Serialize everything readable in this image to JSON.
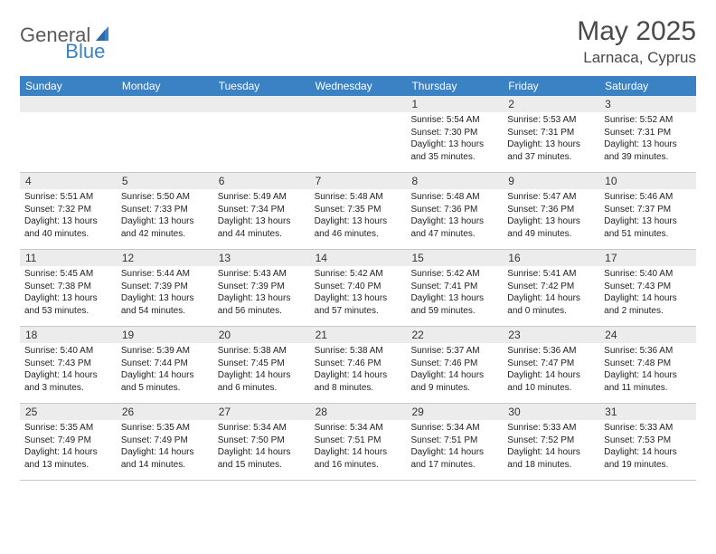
{
  "logo": {
    "text1": "General",
    "text2": "Blue"
  },
  "title": {
    "month": "May 2025",
    "location": "Larnaca, Cyprus"
  },
  "dayheaders": [
    "Sunday",
    "Monday",
    "Tuesday",
    "Wednesday",
    "Thursday",
    "Friday",
    "Saturday"
  ],
  "colors": {
    "header_bg": "#3b82c4",
    "header_fg": "#ffffff",
    "daynum_bg": "#ececec",
    "text": "#222222",
    "logo_gray": "#5a5a5a",
    "logo_blue": "#3b82c4"
  },
  "fonts": {
    "title_pt": 30,
    "location_pt": 17,
    "header_pt": 12,
    "daynum_pt": 12,
    "body_pt": 10
  },
  "weeks": [
    [
      {
        "n": "",
        "l1": "",
        "l2": "",
        "l3": "",
        "l4": ""
      },
      {
        "n": "",
        "l1": "",
        "l2": "",
        "l3": "",
        "l4": ""
      },
      {
        "n": "",
        "l1": "",
        "l2": "",
        "l3": "",
        "l4": ""
      },
      {
        "n": "",
        "l1": "",
        "l2": "",
        "l3": "",
        "l4": ""
      },
      {
        "n": "1",
        "l1": "Sunrise: 5:54 AM",
        "l2": "Sunset: 7:30 PM",
        "l3": "Daylight: 13 hours",
        "l4": "and 35 minutes."
      },
      {
        "n": "2",
        "l1": "Sunrise: 5:53 AM",
        "l2": "Sunset: 7:31 PM",
        "l3": "Daylight: 13 hours",
        "l4": "and 37 minutes."
      },
      {
        "n": "3",
        "l1": "Sunrise: 5:52 AM",
        "l2": "Sunset: 7:31 PM",
        "l3": "Daylight: 13 hours",
        "l4": "and 39 minutes."
      }
    ],
    [
      {
        "n": "4",
        "l1": "Sunrise: 5:51 AM",
        "l2": "Sunset: 7:32 PM",
        "l3": "Daylight: 13 hours",
        "l4": "and 40 minutes."
      },
      {
        "n": "5",
        "l1": "Sunrise: 5:50 AM",
        "l2": "Sunset: 7:33 PM",
        "l3": "Daylight: 13 hours",
        "l4": "and 42 minutes."
      },
      {
        "n": "6",
        "l1": "Sunrise: 5:49 AM",
        "l2": "Sunset: 7:34 PM",
        "l3": "Daylight: 13 hours",
        "l4": "and 44 minutes."
      },
      {
        "n": "7",
        "l1": "Sunrise: 5:48 AM",
        "l2": "Sunset: 7:35 PM",
        "l3": "Daylight: 13 hours",
        "l4": "and 46 minutes."
      },
      {
        "n": "8",
        "l1": "Sunrise: 5:48 AM",
        "l2": "Sunset: 7:36 PM",
        "l3": "Daylight: 13 hours",
        "l4": "and 47 minutes."
      },
      {
        "n": "9",
        "l1": "Sunrise: 5:47 AM",
        "l2": "Sunset: 7:36 PM",
        "l3": "Daylight: 13 hours",
        "l4": "and 49 minutes."
      },
      {
        "n": "10",
        "l1": "Sunrise: 5:46 AM",
        "l2": "Sunset: 7:37 PM",
        "l3": "Daylight: 13 hours",
        "l4": "and 51 minutes."
      }
    ],
    [
      {
        "n": "11",
        "l1": "Sunrise: 5:45 AM",
        "l2": "Sunset: 7:38 PM",
        "l3": "Daylight: 13 hours",
        "l4": "and 53 minutes."
      },
      {
        "n": "12",
        "l1": "Sunrise: 5:44 AM",
        "l2": "Sunset: 7:39 PM",
        "l3": "Daylight: 13 hours",
        "l4": "and 54 minutes."
      },
      {
        "n": "13",
        "l1": "Sunrise: 5:43 AM",
        "l2": "Sunset: 7:39 PM",
        "l3": "Daylight: 13 hours",
        "l4": "and 56 minutes."
      },
      {
        "n": "14",
        "l1": "Sunrise: 5:42 AM",
        "l2": "Sunset: 7:40 PM",
        "l3": "Daylight: 13 hours",
        "l4": "and 57 minutes."
      },
      {
        "n": "15",
        "l1": "Sunrise: 5:42 AM",
        "l2": "Sunset: 7:41 PM",
        "l3": "Daylight: 13 hours",
        "l4": "and 59 minutes."
      },
      {
        "n": "16",
        "l1": "Sunrise: 5:41 AM",
        "l2": "Sunset: 7:42 PM",
        "l3": "Daylight: 14 hours",
        "l4": "and 0 minutes."
      },
      {
        "n": "17",
        "l1": "Sunrise: 5:40 AM",
        "l2": "Sunset: 7:43 PM",
        "l3": "Daylight: 14 hours",
        "l4": "and 2 minutes."
      }
    ],
    [
      {
        "n": "18",
        "l1": "Sunrise: 5:40 AM",
        "l2": "Sunset: 7:43 PM",
        "l3": "Daylight: 14 hours",
        "l4": "and 3 minutes."
      },
      {
        "n": "19",
        "l1": "Sunrise: 5:39 AM",
        "l2": "Sunset: 7:44 PM",
        "l3": "Daylight: 14 hours",
        "l4": "and 5 minutes."
      },
      {
        "n": "20",
        "l1": "Sunrise: 5:38 AM",
        "l2": "Sunset: 7:45 PM",
        "l3": "Daylight: 14 hours",
        "l4": "and 6 minutes."
      },
      {
        "n": "21",
        "l1": "Sunrise: 5:38 AM",
        "l2": "Sunset: 7:46 PM",
        "l3": "Daylight: 14 hours",
        "l4": "and 8 minutes."
      },
      {
        "n": "22",
        "l1": "Sunrise: 5:37 AM",
        "l2": "Sunset: 7:46 PM",
        "l3": "Daylight: 14 hours",
        "l4": "and 9 minutes."
      },
      {
        "n": "23",
        "l1": "Sunrise: 5:36 AM",
        "l2": "Sunset: 7:47 PM",
        "l3": "Daylight: 14 hours",
        "l4": "and 10 minutes."
      },
      {
        "n": "24",
        "l1": "Sunrise: 5:36 AM",
        "l2": "Sunset: 7:48 PM",
        "l3": "Daylight: 14 hours",
        "l4": "and 11 minutes."
      }
    ],
    [
      {
        "n": "25",
        "l1": "Sunrise: 5:35 AM",
        "l2": "Sunset: 7:49 PM",
        "l3": "Daylight: 14 hours",
        "l4": "and 13 minutes."
      },
      {
        "n": "26",
        "l1": "Sunrise: 5:35 AM",
        "l2": "Sunset: 7:49 PM",
        "l3": "Daylight: 14 hours",
        "l4": "and 14 minutes."
      },
      {
        "n": "27",
        "l1": "Sunrise: 5:34 AM",
        "l2": "Sunset: 7:50 PM",
        "l3": "Daylight: 14 hours",
        "l4": "and 15 minutes."
      },
      {
        "n": "28",
        "l1": "Sunrise: 5:34 AM",
        "l2": "Sunset: 7:51 PM",
        "l3": "Daylight: 14 hours",
        "l4": "and 16 minutes."
      },
      {
        "n": "29",
        "l1": "Sunrise: 5:34 AM",
        "l2": "Sunset: 7:51 PM",
        "l3": "Daylight: 14 hours",
        "l4": "and 17 minutes."
      },
      {
        "n": "30",
        "l1": "Sunrise: 5:33 AM",
        "l2": "Sunset: 7:52 PM",
        "l3": "Daylight: 14 hours",
        "l4": "and 18 minutes."
      },
      {
        "n": "31",
        "l1": "Sunrise: 5:33 AM",
        "l2": "Sunset: 7:53 PM",
        "l3": "Daylight: 14 hours",
        "l4": "and 19 minutes."
      }
    ]
  ]
}
